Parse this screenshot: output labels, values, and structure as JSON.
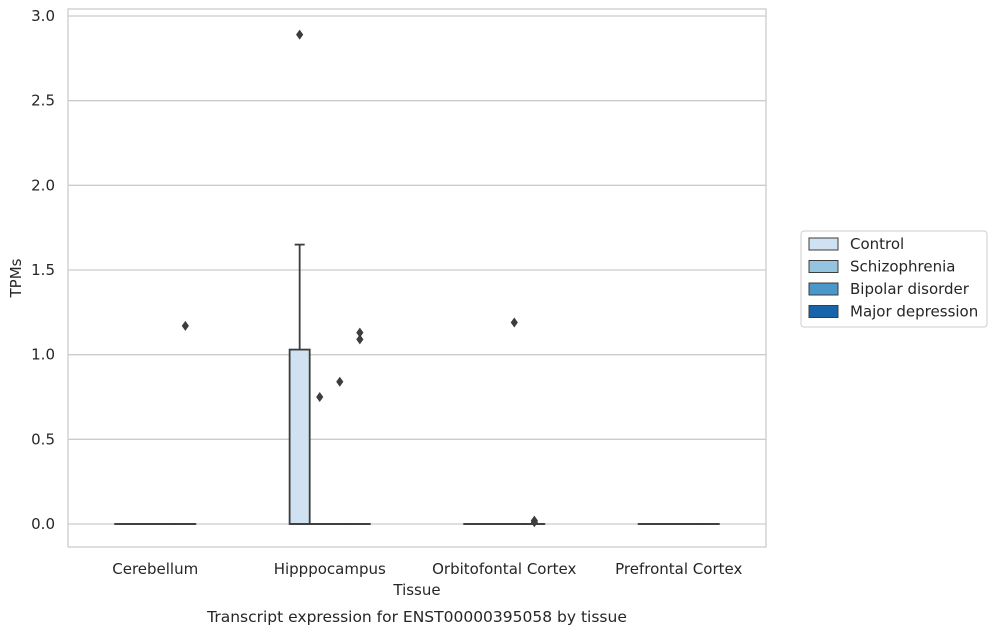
{
  "chart_data": {
    "type": "box",
    "caption": "Transcript expression for ENST00000395058 by tissue",
    "xlabel": "Tissue",
    "ylabel": "TPMs",
    "ylim": [
      -0.14,
      3.04
    ],
    "yticks": [
      0.0,
      0.5,
      1.0,
      1.5,
      2.0,
      2.5,
      3.0
    ],
    "ytick_labels": [
      "0.0",
      "0.5",
      "1.0",
      "1.5",
      "2.0",
      "2.5",
      "3.0"
    ],
    "grid": "horizontal",
    "legend_position": "right",
    "categories": [
      "Cerebellum",
      "Hipppocampus",
      "Orbitofontal Cortex",
      "Prefrontal Cortex"
    ],
    "series": [
      {
        "name": "Control",
        "color": "#d0e1f2",
        "boxes": [
          {
            "q1": 0,
            "median": 0,
            "q3": 0,
            "whisker_low": 0,
            "whisker_high": 0,
            "outliers": []
          },
          {
            "q1": 0,
            "median": 0,
            "q3": 1.03,
            "whisker_low": 0,
            "whisker_high": 1.65,
            "outliers": [
              2.89
            ]
          },
          {
            "q1": 0,
            "median": 0,
            "q3": 0,
            "whisker_low": 0,
            "whisker_high": 0,
            "outliers": []
          },
          {
            "q1": 0,
            "median": 0,
            "q3": 0,
            "whisker_low": 0,
            "whisker_high": 0,
            "outliers": []
          }
        ]
      },
      {
        "name": "Schizophrenia",
        "color": "#94c4df",
        "boxes": [
          {
            "q1": 0,
            "median": 0,
            "q3": 0,
            "whisker_low": 0,
            "whisker_high": 0,
            "outliers": []
          },
          {
            "q1": 0,
            "median": 0,
            "q3": 0,
            "whisker_low": 0,
            "whisker_high": 0,
            "outliers": [
              0.75
            ]
          },
          {
            "q1": 0,
            "median": 0,
            "q3": 0,
            "whisker_low": 0,
            "whisker_high": 0,
            "outliers": []
          },
          {
            "q1": 0,
            "median": 0,
            "q3": 0,
            "whisker_low": 0,
            "whisker_high": 0,
            "outliers": []
          }
        ]
      },
      {
        "name": "Bipolar disorder",
        "color": "#4a98c9",
        "boxes": [
          {
            "q1": 0,
            "median": 0,
            "q3": 0,
            "whisker_low": 0,
            "whisker_high": 0,
            "outliers": []
          },
          {
            "q1": 0,
            "median": 0,
            "q3": 0,
            "whisker_low": 0,
            "whisker_high": 0,
            "outliers": [
              0.84
            ]
          },
          {
            "q1": 0,
            "median": 0,
            "q3": 0,
            "whisker_low": 0,
            "whisker_high": 0,
            "outliers": [
              1.19
            ]
          },
          {
            "q1": 0,
            "median": 0,
            "q3": 0,
            "whisker_low": 0,
            "whisker_high": 0,
            "outliers": []
          }
        ]
      },
      {
        "name": "Major depression",
        "color": "#1764ab",
        "boxes": [
          {
            "q1": 0,
            "median": 0,
            "q3": 0,
            "whisker_low": 0,
            "whisker_high": 0,
            "outliers": [
              1.17
            ]
          },
          {
            "q1": 0,
            "median": 0,
            "q3": 0,
            "whisker_low": 0,
            "whisker_high": 0,
            "outliers": [
              1.09,
              1.13
            ]
          },
          {
            "q1": 0,
            "median": 0,
            "q3": 0,
            "whisker_low": 0,
            "whisker_high": 0,
            "outliers": [
              0.01,
              0.02
            ]
          },
          {
            "q1": 0,
            "median": 0,
            "q3": 0,
            "whisker_low": 0,
            "whisker_high": 0,
            "outliers": []
          }
        ]
      }
    ]
  }
}
